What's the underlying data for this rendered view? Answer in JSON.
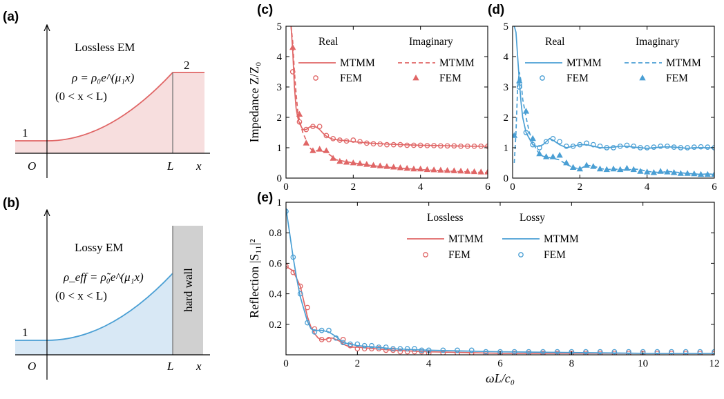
{
  "colors": {
    "lossless": "#e06666",
    "lossy": "#4a9fd4",
    "lossless_fill": "#f7dede",
    "lossy_fill": "#d8e8f5",
    "wall": "#d0d0d0"
  },
  "panel_a": {
    "label": "(a)",
    "title": "Lossless EM",
    "equation": "ρ = ρ₀e^(μ₁x)",
    "range": "(0 < x < L)",
    "region_left": "1",
    "region_right": "2",
    "origin": "O",
    "L_mark": "L",
    "x_mark": "x"
  },
  "panel_b": {
    "label": "(b)",
    "title": "Lossy EM",
    "equation": "ρ_eff = ρ̃₀e^(μ₁x)",
    "range": "(0 < x < L)",
    "region_left": "1",
    "wall_label": "hard wall",
    "origin": "O",
    "L_mark": "L",
    "x_mark": "x"
  },
  "chart_data": [
    {
      "id": "c",
      "label": "(c)",
      "type": "line",
      "ylabel": "Impedance Z/Z₀",
      "xlim": [
        0,
        6
      ],
      "ylim": [
        0,
        5
      ],
      "xticks": [
        0,
        2,
        4,
        6
      ],
      "yticks": [
        0,
        1,
        2,
        3,
        4,
        5
      ],
      "legend_headers": [
        "Real",
        "Imaginary"
      ],
      "legend_entries": [
        "MTMM",
        "FEM",
        "MTMM",
        "FEM"
      ],
      "series": [
        {
          "name": "MTMM",
          "part": "Real",
          "style": "solid",
          "x": [
            0.15,
            0.2,
            0.25,
            0.3,
            0.35,
            0.4,
            0.5,
            0.6,
            0.7,
            0.8,
            0.9,
            1.0,
            1.1,
            1.2,
            1.3,
            1.4,
            1.6,
            1.8,
            2.0,
            2.5,
            3.0,
            3.5,
            4.0,
            4.5,
            5.0,
            5.5,
            6.0
          ],
          "y": [
            5.0,
            4.2,
            3.0,
            2.3,
            2.0,
            1.8,
            1.6,
            1.6,
            1.68,
            1.7,
            1.68,
            1.6,
            1.48,
            1.38,
            1.32,
            1.28,
            1.25,
            1.23,
            1.2,
            1.15,
            1.12,
            1.1,
            1.08,
            1.07,
            1.06,
            1.05,
            1.05
          ]
        },
        {
          "name": "FEM",
          "part": "Real",
          "style": "circle",
          "x": [
            0.2,
            0.4,
            0.6,
            0.8,
            1.0,
            1.2,
            1.4,
            1.6,
            1.8,
            2.0,
            2.2,
            2.4,
            2.6,
            2.8,
            3.0,
            3.2,
            3.4,
            3.6,
            3.8,
            4.0,
            4.2,
            4.4,
            4.6,
            4.8,
            5.0,
            5.2,
            5.4,
            5.6,
            5.8,
            6.0
          ],
          "y": [
            3.5,
            1.85,
            1.6,
            1.7,
            1.7,
            1.4,
            1.3,
            1.25,
            1.22,
            1.25,
            1.2,
            1.15,
            1.13,
            1.12,
            1.1,
            1.1,
            1.1,
            1.08,
            1.08,
            1.08,
            1.07,
            1.07,
            1.06,
            1.06,
            1.06,
            1.05,
            1.05,
            1.05,
            1.05,
            1.05
          ]
        },
        {
          "name": "MTMM",
          "part": "Imaginary",
          "style": "dashed",
          "x": [
            0.15,
            0.2,
            0.25,
            0.3,
            0.35,
            0.4,
            0.5,
            0.6,
            0.7,
            0.8,
            1.0,
            1.2,
            1.5,
            2.0,
            2.5,
            3.0,
            3.5,
            4.0,
            4.5,
            5.0,
            5.5,
            6.0
          ],
          "y": [
            5.0,
            4.5,
            3.5,
            2.8,
            2.2,
            1.9,
            1.5,
            1.25,
            1.0,
            0.9,
            0.9,
            0.85,
            0.6,
            0.5,
            0.42,
            0.36,
            0.32,
            0.28,
            0.25,
            0.22,
            0.2,
            0.18
          ]
        },
        {
          "name": "FEM",
          "part": "Imaginary",
          "style": "triangle",
          "x": [
            0.2,
            0.4,
            0.6,
            0.8,
            1.0,
            1.2,
            1.4,
            1.6,
            1.8,
            2.0,
            2.2,
            2.4,
            2.6,
            2.8,
            3.0,
            3.2,
            3.4,
            3.6,
            3.8,
            4.0,
            4.2,
            4.4,
            4.6,
            4.8,
            5.0,
            5.2,
            5.4,
            5.6,
            5.8,
            6.0
          ],
          "y": [
            4.3,
            2.1,
            1.15,
            0.9,
            0.95,
            0.9,
            0.65,
            0.55,
            0.52,
            0.5,
            0.48,
            0.45,
            0.42,
            0.4,
            0.38,
            0.36,
            0.34,
            0.32,
            0.3,
            0.3,
            0.28,
            0.27,
            0.26,
            0.25,
            0.24,
            0.23,
            0.22,
            0.21,
            0.2,
            0.2
          ]
        }
      ]
    },
    {
      "id": "d",
      "label": "(d)",
      "type": "line",
      "xlim": [
        0,
        6
      ],
      "ylim": [
        0,
        5
      ],
      "xticks": [
        0,
        2,
        4,
        6
      ],
      "yticks": [
        0,
        1,
        2,
        3,
        4,
        5
      ],
      "legend_headers": [
        "Real",
        "Imaginary"
      ],
      "legend_entries": [
        "MTMM",
        "FEM",
        "MTMM",
        "FEM"
      ],
      "series": [
        {
          "name": "MTMM",
          "part": "Real",
          "style": "solid",
          "x": [
            0.05,
            0.1,
            0.15,
            0.2,
            0.25,
            0.3,
            0.4,
            0.5,
            0.6,
            0.7,
            0.8,
            0.9,
            1.0,
            1.1,
            1.2,
            1.4,
            1.6,
            1.8,
            2.0,
            2.2,
            2.4,
            2.6,
            2.8,
            3.0,
            3.2,
            3.4,
            3.6,
            3.8,
            4.0,
            4.2,
            4.4,
            4.6,
            4.8,
            5.0,
            5.2,
            5.4,
            5.6,
            5.8,
            6.0
          ],
          "y": [
            5.0,
            4.8,
            4.0,
            3.2,
            2.5,
            2.0,
            1.5,
            1.3,
            1.1,
            1.05,
            1.05,
            1.1,
            1.2,
            1.3,
            1.25,
            1.1,
            1.0,
            1.05,
            1.1,
            1.1,
            1.05,
            1.0,
            1.0,
            1.02,
            1.05,
            1.05,
            1.02,
            1.0,
            0.98,
            1.0,
            1.02,
            1.03,
            1.02,
            1.0,
            0.98,
            1.0,
            1.0,
            1.0,
            1.0
          ]
        },
        {
          "name": "FEM",
          "part": "Real",
          "style": "circle",
          "x": [
            0.2,
            0.4,
            0.6,
            0.8,
            1.0,
            1.2,
            1.4,
            1.6,
            1.8,
            2.0,
            2.2,
            2.4,
            2.6,
            2.8,
            3.0,
            3.2,
            3.4,
            3.6,
            3.8,
            4.0,
            4.2,
            4.4,
            4.6,
            4.8,
            5.0,
            5.2,
            5.4,
            5.6,
            5.8,
            6.0
          ],
          "y": [
            3.0,
            1.5,
            1.1,
            1.0,
            1.2,
            1.3,
            1.2,
            1.05,
            1.05,
            1.1,
            1.15,
            1.1,
            1.05,
            1.0,
            1.0,
            1.05,
            1.08,
            1.05,
            1.0,
            1.0,
            1.02,
            1.05,
            1.05,
            1.02,
            1.0,
            1.0,
            1.02,
            1.03,
            1.02,
            1.0
          ]
        },
        {
          "name": "MTMM",
          "part": "Imaginary",
          "style": "dashed",
          "x": [
            0.05,
            0.1,
            0.15,
            0.2,
            0.25,
            0.3,
            0.4,
            0.5,
            0.6,
            0.7,
            0.8,
            0.9,
            1.0,
            1.2,
            1.4,
            1.6,
            1.8,
            2.0,
            2.2,
            2.4,
            2.6,
            2.8,
            3.0,
            3.2,
            3.4,
            3.6,
            3.8,
            4.0,
            4.2,
            4.4,
            4.6,
            4.8,
            5.0,
            5.2,
            5.4,
            5.6,
            5.8,
            6.0
          ],
          "y": [
            0.5,
            1.5,
            3.0,
            3.5,
            3.2,
            2.6,
            2.0,
            1.5,
            1.2,
            0.95,
            0.8,
            0.72,
            0.7,
            0.65,
            0.6,
            0.45,
            0.35,
            0.3,
            0.42,
            0.4,
            0.32,
            0.28,
            0.3,
            0.28,
            0.26,
            0.3,
            0.28,
            0.22,
            0.2,
            0.18,
            0.22,
            0.2,
            0.18,
            0.15,
            0.14,
            0.12,
            0.14,
            0.12
          ]
        },
        {
          "name": "FEM",
          "part": "Imaginary",
          "style": "triangle",
          "x": [
            0.05,
            0.2,
            0.4,
            0.6,
            0.8,
            1.0,
            1.2,
            1.4,
            1.6,
            1.8,
            2.0,
            2.2,
            2.4,
            2.6,
            2.8,
            3.0,
            3.2,
            3.4,
            3.6,
            3.8,
            4.0,
            4.2,
            4.4,
            4.6,
            4.8,
            5.0,
            5.2,
            5.4,
            5.6,
            5.8,
            6.0
          ],
          "y": [
            1.4,
            3.2,
            2.2,
            1.3,
            0.8,
            0.7,
            0.7,
            0.75,
            0.5,
            0.35,
            0.3,
            0.42,
            0.38,
            0.3,
            0.28,
            0.3,
            0.28,
            0.32,
            0.28,
            0.22,
            0.2,
            0.18,
            0.22,
            0.2,
            0.18,
            0.15,
            0.15,
            0.14,
            0.12,
            0.12,
            0.12
          ]
        }
      ]
    },
    {
      "id": "e",
      "label": "(e)",
      "type": "line",
      "xlabel": "ωL/c₀",
      "ylabel": "Reflection |S₁₁|²",
      "xlim": [
        0,
        12
      ],
      "ylim": [
        0,
        1
      ],
      "xticks": [
        0,
        2,
        4,
        6,
        8,
        10,
        12
      ],
      "yticks": [
        0,
        0.2,
        0.4,
        0.6,
        0.8,
        1
      ],
      "legend_headers": [
        "Lossless",
        "Lossy"
      ],
      "legend_entries": [
        "MTMM",
        "FEM",
        "MTMM",
        "FEM"
      ],
      "series": [
        {
          "name": "MTMM",
          "group": "Lossless",
          "style": "solid",
          "color": "lossless",
          "x": [
            0,
            0.2,
            0.4,
            0.5,
            0.6,
            0.7,
            0.8,
            0.9,
            1.0,
            1.1,
            1.2,
            1.3,
            1.4,
            1.5,
            1.6,
            1.8,
            2.0,
            2.5,
            3.0,
            4.0,
            5.0,
            6.0,
            8.0,
            10.0,
            12.0
          ],
          "y": [
            0.58,
            0.55,
            0.45,
            0.35,
            0.25,
            0.18,
            0.14,
            0.11,
            0.1,
            0.1,
            0.11,
            0.11,
            0.1,
            0.09,
            0.07,
            0.05,
            0.05,
            0.04,
            0.03,
            0.02,
            0.015,
            0.01,
            0.01,
            0.01,
            0.01
          ]
        },
        {
          "name": "FEM",
          "group": "Lossless",
          "style": "circle",
          "color": "lossless",
          "x": [
            0,
            0.2,
            0.4,
            0.6,
            0.8,
            1.0,
            1.2,
            1.4,
            1.6,
            1.8,
            2.0,
            2.2,
            2.4,
            2.6,
            2.8,
            3.0,
            3.2,
            3.4,
            3.6,
            3.8,
            4.0,
            4.4,
            4.8,
            5.2,
            5.6,
            6.0,
            6.4,
            6.8,
            7.2,
            7.6,
            8.0,
            8.4,
            8.8,
            9.2,
            9.6,
            10.0,
            10.4,
            10.8,
            11.2,
            11.6,
            12.0
          ],
          "y": [
            0.58,
            0.54,
            0.45,
            0.31,
            0.17,
            0.1,
            0.1,
            0.11,
            0.1,
            0.06,
            0.04,
            0.04,
            0.04,
            0.04,
            0.03,
            0.03,
            0.02,
            0.02,
            0.02,
            0.02,
            0.01,
            0.01,
            0.01,
            0.01,
            0.01,
            0.01,
            0.01,
            0.01,
            0.01,
            0.01,
            0.01,
            0.01,
            0.01,
            0.01,
            0.01,
            0.01,
            0.01,
            0.01,
            0.01,
            0.01,
            0.01
          ]
        },
        {
          "name": "MTMM",
          "group": "Lossy",
          "style": "solid",
          "color": "lossy",
          "x": [
            0,
            0.1,
            0.2,
            0.3,
            0.4,
            0.5,
            0.6,
            0.7,
            0.8,
            0.9,
            1.0,
            1.2,
            1.4,
            1.6,
            1.8,
            2.0,
            2.5,
            3.0,
            4.0,
            5.0,
            6.0,
            8.0,
            10.0,
            12.0
          ],
          "y": [
            0.96,
            0.8,
            0.64,
            0.5,
            0.38,
            0.3,
            0.22,
            0.17,
            0.16,
            0.16,
            0.16,
            0.15,
            0.12,
            0.08,
            0.07,
            0.06,
            0.05,
            0.04,
            0.03,
            0.025,
            0.02,
            0.015,
            0.01,
            0.01
          ]
        },
        {
          "name": "FEM",
          "group": "Lossy",
          "style": "circle",
          "color": "lossy",
          "x": [
            0,
            0.2,
            0.4,
            0.6,
            0.8,
            1.0,
            1.2,
            1.4,
            1.6,
            1.8,
            2.0,
            2.2,
            2.4,
            2.6,
            2.8,
            3.0,
            3.2,
            3.4,
            3.6,
            3.8,
            4.0,
            4.4,
            4.8,
            5.2,
            5.6,
            6.0,
            6.4,
            6.8,
            7.2,
            7.6,
            8.0,
            8.4,
            8.8,
            9.2,
            9.6,
            10.0,
            10.4,
            10.8,
            11.2,
            11.6,
            12.0
          ],
          "y": [
            0.94,
            0.64,
            0.4,
            0.21,
            0.15,
            0.16,
            0.16,
            0.11,
            0.08,
            0.07,
            0.07,
            0.06,
            0.06,
            0.05,
            0.05,
            0.04,
            0.04,
            0.04,
            0.04,
            0.03,
            0.03,
            0.03,
            0.03,
            0.03,
            0.02,
            0.02,
            0.02,
            0.02,
            0.02,
            0.02,
            0.02,
            0.02,
            0.02,
            0.02,
            0.02,
            0.02,
            0.02,
            0.02,
            0.02,
            0.02,
            0.02
          ]
        }
      ]
    }
  ]
}
